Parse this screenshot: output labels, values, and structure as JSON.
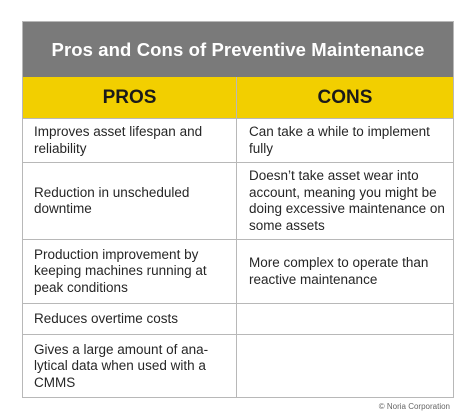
{
  "title": "Pros and Cons of Preventive Maintenance",
  "columns": {
    "pros": "PROS",
    "cons": "CONS"
  },
  "rows": [
    {
      "pro": "Improves asset lifespan and reliability",
      "con": "Can take a while to implement fully"
    },
    {
      "pro": "Reduction in unscheduled downtime",
      "con": "Doesn’t take asset wear into account, meaning you might be doing excessive maintenance on some assets"
    },
    {
      "pro": "Production improvement by keeping machines running at peak conditions",
      "con": "More complex to operate than reactive maintenance"
    },
    {
      "pro": "Reduces overtime costs",
      "con": ""
    },
    {
      "pro": "Gives a large amount of ana-lytical data when used with a CMMS",
      "con": ""
    }
  ],
  "copyright": "© Noria Corporation",
  "colors": {
    "title_bar": "#7a7a7a",
    "header_bar": "#f2cf00",
    "border": "#b8b8b8"
  }
}
